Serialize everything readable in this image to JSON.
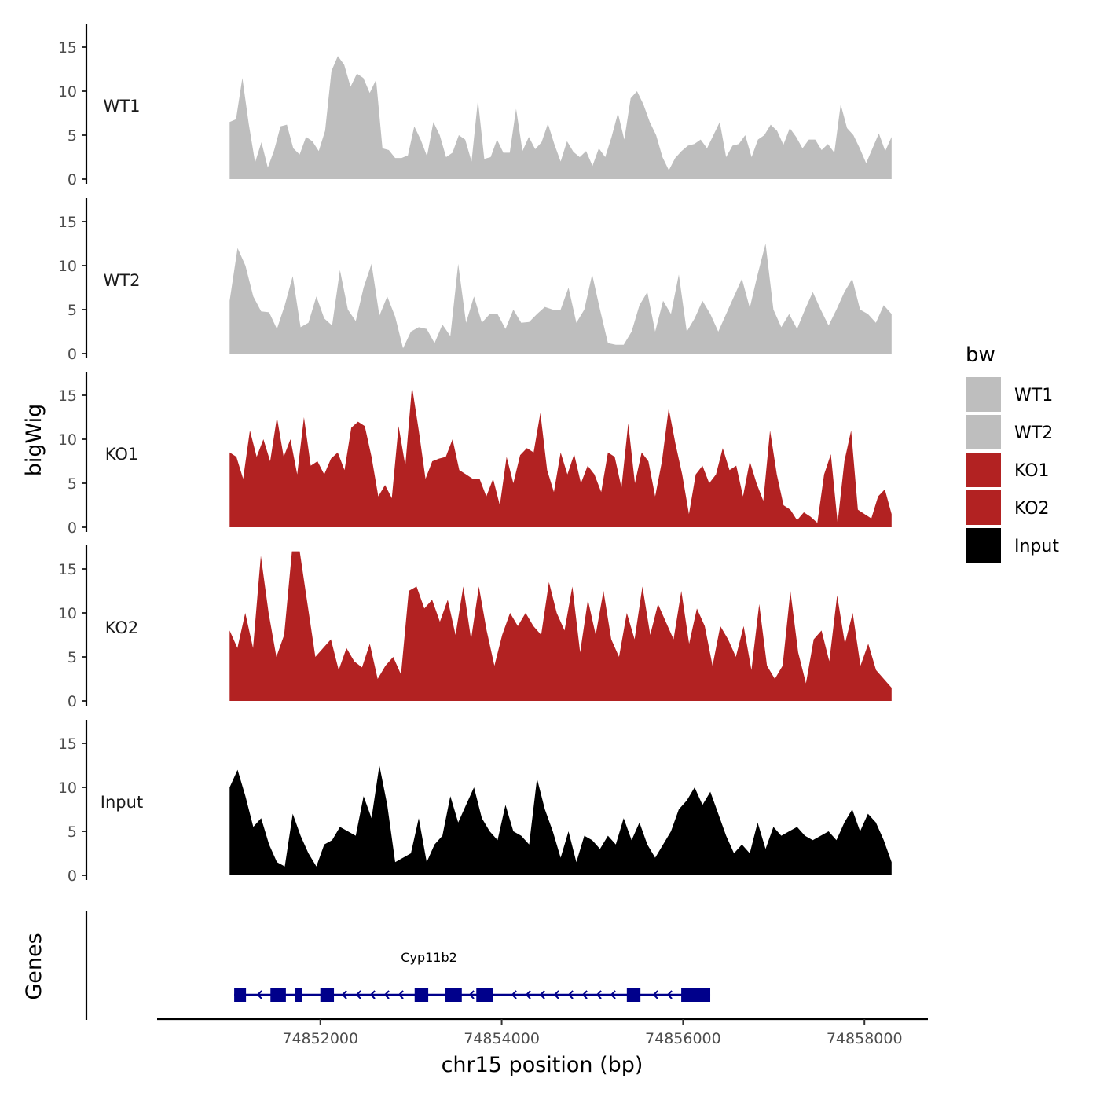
{
  "chart_data": {
    "type": "area",
    "y_title": "bigWig",
    "x_title": "chr15 position (bp)",
    "genes_title": "Genes",
    "ylim": [
      0,
      17.5
    ],
    "y_ticks": [
      0,
      5,
      10,
      15
    ],
    "xlim": [
      74850200,
      74858700
    ],
    "x_ticks": [
      74852000,
      74854000,
      74856000,
      74858000
    ],
    "x_tick_labels": [
      "74852000",
      "74854000",
      "74856000",
      "74858000"
    ],
    "data_range": [
      74851000,
      74858300
    ],
    "legend": {
      "title": "bw",
      "entries": [
        {
          "label": "WT1",
          "color": "#bebebe"
        },
        {
          "label": "WT2",
          "color": "#bebebe"
        },
        {
          "label": "KO1",
          "color": "#b22222"
        },
        {
          "label": "KO2",
          "color": "#b22222"
        },
        {
          "label": "Input",
          "color": "#000000"
        }
      ]
    },
    "series": [
      {
        "name": "WT1",
        "color": "#bebebe",
        "values": [
          6.5,
          6.8,
          11.5,
          6.3,
          1.9,
          4.2,
          1.3,
          3.3,
          6.0,
          6.2,
          3.5,
          2.8,
          4.8,
          4.3,
          3.2,
          5.5,
          12.3,
          14.0,
          13.0,
          10.5,
          12.0,
          11.5,
          9.8,
          11.3,
          3.5,
          3.3,
          2.4,
          2.4,
          2.7,
          6.0,
          4.5,
          2.6,
          6.5,
          5.0,
          2.5,
          3.0,
          5.0,
          4.5,
          2.0,
          9.0,
          2.3,
          2.5,
          4.5,
          3.0,
          3.0,
          8.0,
          3.2,
          4.8,
          3.4,
          4.2,
          6.3,
          4.0,
          2.0,
          4.3,
          3.1,
          2.5,
          3.2,
          1.5,
          3.5,
          2.5,
          4.8,
          7.5,
          4.5,
          9.2,
          10.0,
          8.5,
          6.5,
          5.0,
          2.5,
          1.0,
          2.4,
          3.2,
          3.8,
          4.0,
          4.5,
          3.5,
          5.0,
          6.5,
          2.5,
          3.8,
          4.0,
          5.0,
          2.5,
          4.5,
          5.0,
          6.2,
          5.5,
          3.9,
          5.8,
          4.8,
          3.5,
          4.5,
          4.5,
          3.3,
          4.0,
          3.0,
          8.5,
          5.8,
          5.0,
          3.5,
          1.8,
          3.5,
          5.2,
          3.2,
          4.8
        ]
      },
      {
        "name": "WT2",
        "color": "#bebebe",
        "values": [
          6.0,
          12.0,
          10.0,
          6.5,
          4.8,
          4.7,
          2.8,
          5.5,
          8.8,
          3.0,
          3.5,
          6.5,
          4.0,
          3.2,
          9.5,
          5.0,
          3.7,
          7.5,
          10.2,
          4.3,
          6.5,
          4.2,
          0.6,
          2.5,
          3.0,
          2.8,
          1.2,
          3.3,
          2.0,
          10.2,
          3.5,
          6.5,
          3.5,
          4.5,
          4.5,
          2.8,
          5.0,
          3.5,
          3.6,
          4.5,
          5.3,
          5.0,
          5.0,
          7.5,
          3.5,
          5.0,
          9.0,
          5.0,
          1.2,
          1.0,
          1.0,
          2.5,
          5.5,
          7.0,
          2.5,
          6.0,
          4.5,
          9.0,
          2.5,
          4.0,
          6.0,
          4.5,
          2.5,
          4.5,
          6.5,
          8.5,
          5.2,
          9.0,
          12.5,
          5.0,
          3.0,
          4.5,
          2.8,
          5.0,
          7.0,
          5.0,
          3.2,
          5.0,
          7.0,
          8.5,
          5.0,
          4.5,
          3.5,
          5.5,
          4.5
        ]
      },
      {
        "name": "KO1",
        "color": "#b22222",
        "values": [
          8.5,
          8.0,
          5.5,
          11.0,
          8.0,
          10.0,
          7.5,
          12.5,
          8.0,
          10.0,
          6.0,
          12.5,
          7.0,
          7.5,
          6.0,
          7.8,
          8.5,
          6.5,
          11.3,
          12.0,
          11.5,
          8.0,
          3.5,
          4.8,
          3.3,
          11.5,
          7.0,
          16.0,
          11.0,
          5.5,
          7.5,
          7.8,
          8.0,
          10.0,
          6.5,
          6.0,
          5.5,
          5.5,
          3.5,
          5.5,
          2.5,
          8.0,
          5.0,
          8.2,
          9.0,
          8.5,
          13.0,
          6.5,
          4.0,
          8.5,
          6.0,
          8.3,
          5.0,
          7.0,
          6.0,
          4.0,
          8.5,
          8.0,
          4.5,
          11.8,
          5.0,
          8.5,
          7.5,
          3.5,
          7.5,
          13.5,
          9.5,
          6.0,
          1.5,
          6.0,
          7.0,
          5.0,
          6.0,
          9.0,
          6.5,
          7.0,
          3.5,
          7.5,
          5.0,
          3.0,
          11.0,
          6.0,
          2.5,
          2.0,
          0.8,
          1.7,
          1.2,
          0.5,
          6.0,
          8.3,
          0.5,
          7.5,
          11.0,
          2.0,
          1.5,
          1.0,
          3.5,
          4.3,
          1.5
        ]
      },
      {
        "name": "KO2",
        "color": "#b22222",
        "values": [
          8.0,
          6.0,
          10.0,
          6.0,
          16.5,
          10.0,
          5.0,
          7.5,
          17.0,
          17.0,
          11.0,
          5.0,
          6.0,
          7.0,
          3.5,
          6.0,
          4.5,
          3.8,
          6.5,
          2.5,
          4.0,
          5.0,
          3.0,
          12.5,
          13.0,
          10.5,
          11.5,
          9.0,
          11.5,
          7.5,
          13.0,
          7.0,
          13.0,
          8.0,
          4.0,
          7.5,
          10.0,
          8.5,
          10.0,
          8.5,
          7.5,
          13.5,
          10.0,
          8.0,
          13.0,
          5.5,
          11.5,
          7.5,
          12.5,
          7.0,
          5.0,
          10.0,
          7.0,
          13.0,
          7.5,
          11.0,
          9.0,
          7.0,
          12.5,
          6.5,
          10.5,
          8.5,
          4.0,
          8.5,
          7.0,
          5.0,
          8.5,
          3.5,
          11.0,
          4.0,
          2.5,
          4.0,
          12.5,
          5.5,
          2.0,
          7.0,
          8.0,
          4.5,
          12.0,
          6.5,
          10.0,
          4.0,
          6.5,
          3.5,
          2.5,
          1.5
        ]
      },
      {
        "name": "Input",
        "color": "#000000",
        "values": [
          10.0,
          12.0,
          9.0,
          5.5,
          6.5,
          3.5,
          1.5,
          1.0,
          7.0,
          4.5,
          2.5,
          1.0,
          3.5,
          4.0,
          5.5,
          5.0,
          4.5,
          9.0,
          6.5,
          12.5,
          8.0,
          1.5,
          2.0,
          2.5,
          6.5,
          1.5,
          3.5,
          4.5,
          9.0,
          6.0,
          8.0,
          10.0,
          6.5,
          5.0,
          4.0,
          8.0,
          5.0,
          4.5,
          3.5,
          11.0,
          7.5,
          5.0,
          2.0,
          5.0,
          1.5,
          4.5,
          4.0,
          3.0,
          4.5,
          3.5,
          6.5,
          4.0,
          6.0,
          3.5,
          2.0,
          3.5,
          5.0,
          7.5,
          8.5,
          10.0,
          8.0,
          9.5,
          7.0,
          4.5,
          2.5,
          3.5,
          2.5,
          6.0,
          3.0,
          5.5,
          4.5,
          5.0,
          5.5,
          4.5,
          4.0,
          4.5,
          5.0,
          4.0,
          6.0,
          7.5,
          5.0,
          7.0,
          6.0,
          4.0,
          1.5
        ]
      }
    ],
    "gene": {
      "name": "Cyp11b2",
      "strand": "-",
      "start": 74851050,
      "end": 74856300,
      "color": "#00008b",
      "exons": [
        [
          74851050,
          74851180
        ],
        [
          74851450,
          74851620
        ],
        [
          74851720,
          74851800
        ],
        [
          74852000,
          74852150
        ],
        [
          74853040,
          74853190
        ],
        [
          74853380,
          74853560
        ],
        [
          74853720,
          74853900
        ],
        [
          74855380,
          74855530
        ],
        [
          74855980,
          74856300
        ]
      ]
    }
  }
}
